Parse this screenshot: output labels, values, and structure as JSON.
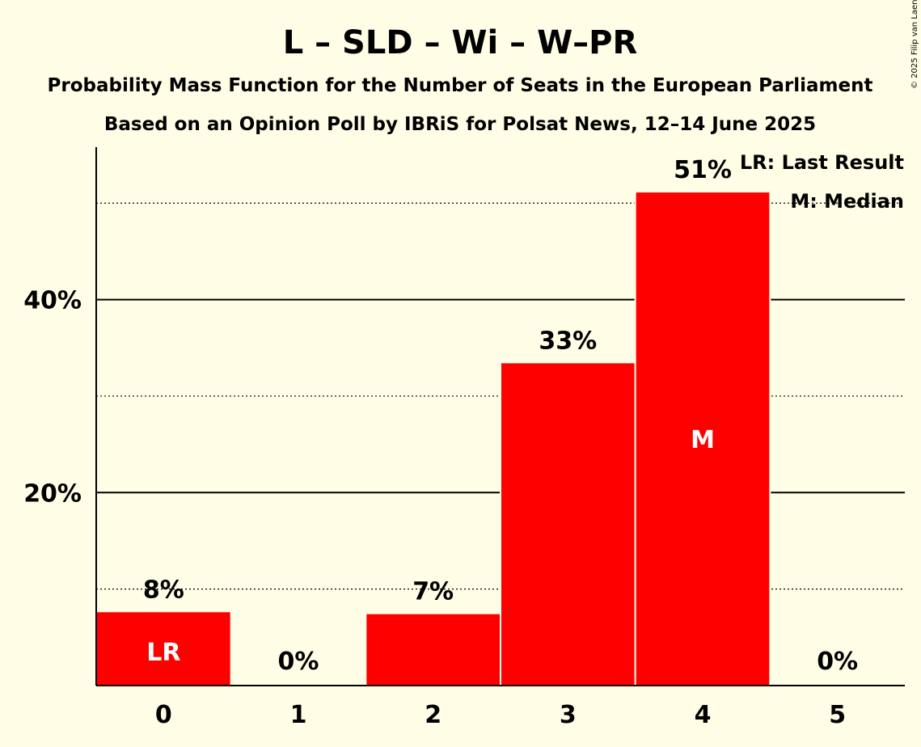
{
  "copyright": "© 2025 Filip van Laenen",
  "chart_data": {
    "type": "bar",
    "title": "L – SLD – Wi – W–PR",
    "subtitle": "Probability Mass Function for the Number of Seats in the European Parliament",
    "subtitle2": "Based on an Opinion Poll by IBRiS for Polsat News, 12–14 June 2025",
    "categories": [
      "0",
      "1",
      "2",
      "3",
      "4",
      "5"
    ],
    "values": [
      7.6,
      0,
      7.4,
      33.4,
      51.1,
      0
    ],
    "value_labels": [
      "8%",
      "0%",
      "7%",
      "33%",
      "51%",
      "0%"
    ],
    "bar_marks": [
      "LR",
      "",
      "",
      "",
      "M",
      ""
    ],
    "ylim": [
      0,
      55.8
    ],
    "y_ticks": [
      {
        "value": 20,
        "label": "20%"
      },
      {
        "value": 40,
        "label": "40%"
      }
    ],
    "y_minor_gridlines": [
      10,
      30,
      50
    ],
    "bar_color": "#FF0000",
    "background": "#FFFDE6",
    "legend": {
      "placement": "top-right",
      "items": [
        "LR: Last Result",
        "M: Median"
      ]
    }
  }
}
